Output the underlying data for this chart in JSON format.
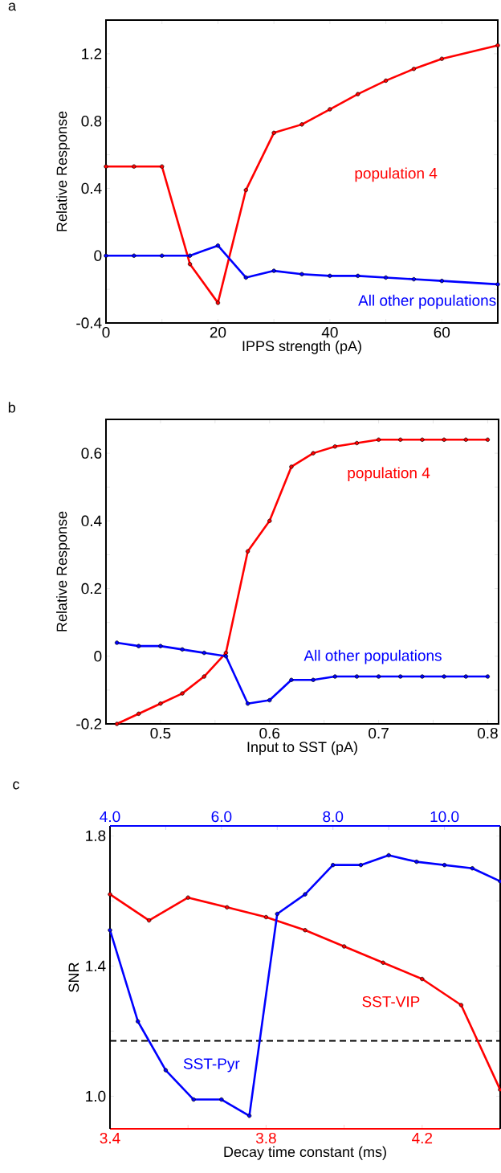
{
  "chart_data": [
    {
      "type": "line",
      "annotations": [
        "a"
      ],
      "xlabel": "IPPS strength (pA)",
      "ylabel": "Relative Response",
      "marker": "circle",
      "grid": false,
      "xlim": [
        0,
        70
      ],
      "ylim": [
        -0.4,
        1.4
      ],
      "xticks": [
        0,
        {
          "value": 10,
          "label": null
        },
        20,
        {
          "value": 30,
          "label": null
        },
        40,
        {
          "value": 50,
          "label": null
        },
        60
      ],
      "yticks": [
        -0.4,
        {
          "value": -0.2,
          "label": null
        },
        0,
        {
          "value": 0.2,
          "label": null
        },
        0.4,
        {
          "value": 0.6,
          "label": null
        },
        0.8,
        {
          "value": 1.0,
          "label": null
        },
        1.2
      ],
      "x": [
        0,
        5,
        10,
        15,
        20,
        25,
        30,
        35,
        40,
        45,
        50,
        55,
        60,
        70
      ],
      "series": [
        {
          "name": "population 4",
          "color": "#ff0000",
          "values": [
            0.53,
            0.53,
            0.53,
            -0.05,
            -0.28,
            0.39,
            0.73,
            0.78,
            0.87,
            0.96,
            1.04,
            1.11,
            1.17,
            1.25
          ]
        },
        {
          "name": "All other populations",
          "color": "#0000ff",
          "values": [
            0,
            0,
            0,
            0,
            0.06,
            -0.13,
            -0.09,
            -0.11,
            -0.12,
            -0.12,
            -0.13,
            -0.14,
            -0.15,
            -0.17
          ]
        }
      ]
    },
    {
      "type": "line",
      "annotations": [
        "b"
      ],
      "xlabel": "Input to SST (pA)",
      "ylabel": "Relative Response",
      "marker": "circle",
      "grid": false,
      "xlim": [
        0.45,
        0.81
      ],
      "ylim": [
        -0.2,
        0.7
      ],
      "xticks": [
        0.5,
        {
          "value": 0.55,
          "label": null
        },
        0.6,
        {
          "value": 0.65,
          "label": null
        },
        0.7,
        {
          "value": 0.75,
          "label": null
        },
        0.8
      ],
      "yticks": [
        -0.2,
        {
          "value": -0.1,
          "label": null
        },
        0,
        {
          "value": 0.1,
          "label": null
        },
        0.2,
        {
          "value": 0.3,
          "label": null
        },
        0.4,
        {
          "value": 0.5,
          "label": null
        },
        0.6
      ],
      "x": [
        0.46,
        0.48,
        0.5,
        0.52,
        0.54,
        0.56,
        0.58,
        0.6,
        0.62,
        0.64,
        0.66,
        0.68,
        0.7,
        0.72,
        0.74,
        0.76,
        0.78,
        0.8
      ],
      "series": [
        {
          "name": "population 4",
          "color": "#ff0000",
          "values": [
            -0.2,
            -0.17,
            -0.14,
            -0.11,
            -0.06,
            0.01,
            0.31,
            0.4,
            0.56,
            0.6,
            0.62,
            0.63,
            0.64,
            0.64,
            0.64,
            0.64,
            0.64,
            0.64
          ]
        },
        {
          "name": "All other populations",
          "color": "#0000ff",
          "values": [
            0.04,
            0.03,
            0.03,
            0.02,
            0.01,
            0,
            -0.14,
            -0.13,
            -0.07,
            -0.07,
            -0.06,
            -0.06,
            -0.06,
            -0.06,
            -0.06,
            -0.06,
            -0.06,
            -0.06
          ]
        }
      ]
    },
    {
      "type": "line",
      "annotations": [
        "c"
      ],
      "xlabel": "Decay time constant (ms)",
      "ylabel": "SNR",
      "marker": "circle",
      "grid": false,
      "xlim": [
        3.4,
        4.4
      ],
      "x2lim": [
        4,
        11
      ],
      "ylim": [
        0.9,
        1.83
      ],
      "xticks": [
        3.4,
        {
          "value": 3.6,
          "label": null
        },
        3.8,
        {
          "value": 4.0,
          "label": null
        },
        4.2
      ],
      "x2ticks": [
        {
          "value": 4,
          "label": "4.0"
        },
        {
          "value": 5,
          "label": null
        },
        {
          "value": 6,
          "label": "6.0"
        },
        {
          "value": 7,
          "label": null
        },
        {
          "value": 8,
          "label": "8.0"
        },
        {
          "value": 9,
          "label": null
        },
        {
          "value": 10,
          "label": "10.0"
        }
      ],
      "yticks": [
        {
          "value": 1.0,
          "label": "1.0"
        },
        {
          "value": 1.2,
          "label": null
        },
        1.4,
        {
          "value": 1.6,
          "label": null
        },
        1.8
      ],
      "ref_lines": [
        {
          "axis": "y",
          "value": 1.17,
          "color": "#000000",
          "line_style": "dashed"
        }
      ],
      "series": [
        {
          "name": "SST-VIP",
          "color": "#ff0000",
          "x": [
            3.4,
            3.5,
            3.6,
            3.7,
            3.8,
            3.9,
            4.0,
            4.1,
            4.2,
            4.3,
            4.4
          ],
          "values": [
            1.62,
            1.54,
            1.61,
            1.58,
            1.55,
            1.51,
            1.46,
            1.41,
            1.36,
            1.28,
            1.02
          ]
        },
        {
          "name": "SST-Pyr",
          "color": "#0000ff",
          "axis": "x2",
          "x": [
            4,
            4.5,
            5,
            5.5,
            6,
            6.5,
            7,
            7.5,
            8,
            8.5,
            9,
            9.5,
            10,
            10.5,
            11
          ],
          "values": [
            1.51,
            1.23,
            1.08,
            0.99,
            0.99,
            0.94,
            1.56,
            1.62,
            1.71,
            1.71,
            1.74,
            1.72,
            1.71,
            1.7,
            1.66
          ]
        }
      ]
    }
  ]
}
